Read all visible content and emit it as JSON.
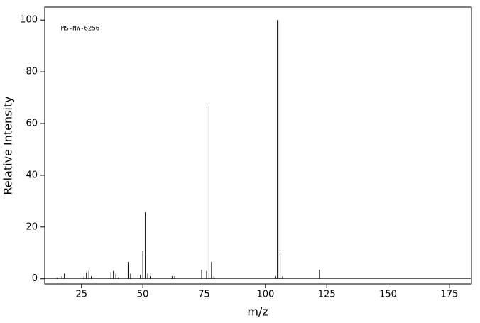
{
  "chart_data": {
    "type": "stick",
    "annotation": "MS-NW-6256",
    "x_label": "m/z",
    "y_label": "Relative Intensity",
    "color": "#000000",
    "x": [
      15,
      17,
      18,
      26,
      27,
      28,
      29,
      37,
      38,
      39,
      40,
      44,
      45,
      49,
      50,
      51,
      52,
      53,
      62,
      63,
      74,
      76,
      77,
      78,
      79,
      104,
      105,
      106,
      107,
      122
    ],
    "values": [
      0.5,
      1,
      2,
      1,
      2.5,
      3,
      1,
      2.5,
      3,
      2,
      0.5,
      6.5,
      2,
      1.5,
      10.8,
      25.8,
      2,
      1,
      1,
      1,
      3.5,
      3,
      67,
      6.5,
      1,
      1,
      100,
      9.8,
      1,
      3.5
    ],
    "xlim": [
      10,
      184
    ],
    "ylim": [
      -2,
      105
    ],
    "xticks": [
      25,
      50,
      75,
      100,
      125,
      150,
      175
    ],
    "yticks": [
      0,
      20,
      40,
      60,
      80,
      100
    ]
  }
}
